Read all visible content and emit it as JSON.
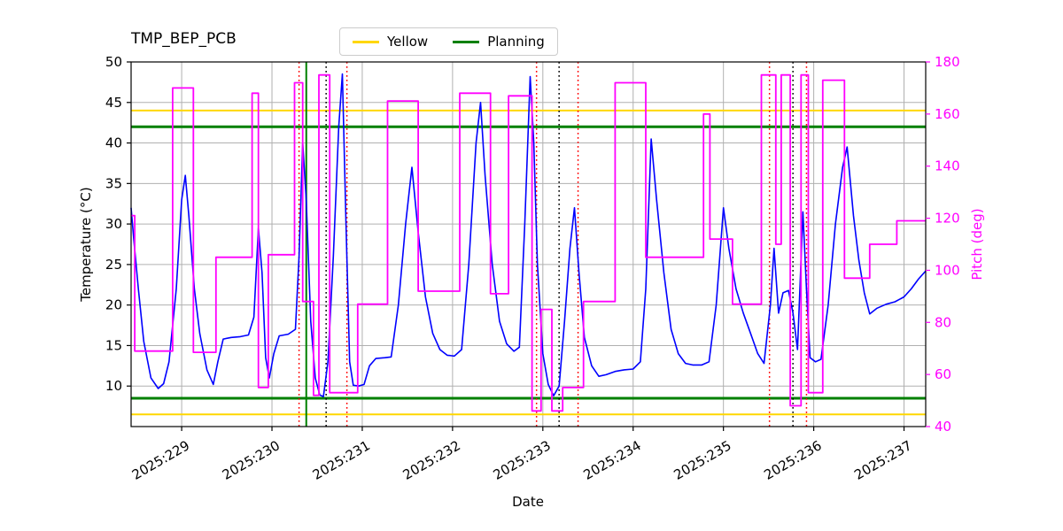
{
  "title": "TMP_BEP_PCB",
  "legend": {
    "items": [
      {
        "label": "Yellow",
        "color": "#ffd700"
      },
      {
        "label": "Planning",
        "color": "#008000"
      }
    ]
  },
  "axes": {
    "x_label": "Date",
    "y_left_label": "Temperature (°C)",
    "y_right_label": "Pitch (deg)"
  },
  "chart_data": {
    "type": "line",
    "title": "TMP_BEP_PCB",
    "xlabel": "Date",
    "ylabel_left": "Temperature (°C)",
    "ylabel_right": "Pitch (deg)",
    "grid": {
      "show": true,
      "color": "#b0b0b0"
    },
    "xlim": [
      228.44,
      237.24
    ],
    "ylim_left": [
      5.0,
      50.0
    ],
    "ylim_right": [
      40,
      180
    ],
    "x_tick_values": [
      229,
      230,
      231,
      232,
      233,
      234,
      235,
      236,
      237
    ],
    "x_tick_labels": [
      "2025:229",
      "2025:230",
      "2025:231",
      "2025:232",
      "2025:233",
      "2025:234",
      "2025:235",
      "2025:236",
      "2025:237"
    ],
    "y_ticks_left": [
      10,
      15,
      20,
      25,
      30,
      35,
      40,
      45,
      50
    ],
    "y_ticks_right": [
      40,
      60,
      80,
      100,
      120,
      140,
      160,
      180
    ],
    "hlines": [
      {
        "name": "yellow-upper-limit",
        "y": 44.0,
        "axis": "left",
        "color": "#ffd700",
        "width": 2
      },
      {
        "name": "yellow-lower-limit",
        "y": 6.5,
        "axis": "left",
        "color": "#ffd700",
        "width": 2
      },
      {
        "name": "planning-upper-limit",
        "y": 42.0,
        "axis": "left",
        "color": "#008000",
        "width": 3
      },
      {
        "name": "planning-lower-limit",
        "y": 8.5,
        "axis": "left",
        "color": "#008000",
        "width": 3
      }
    ],
    "vlines": [
      {
        "x": 230.3,
        "color": "#ff0000",
        "style": "dotted"
      },
      {
        "x": 230.38,
        "color": "#008000",
        "style": "solid"
      },
      {
        "x": 230.6,
        "color": "#000000",
        "style": "dotted"
      },
      {
        "x": 230.83,
        "color": "#ff0000",
        "style": "dotted"
      },
      {
        "x": 232.93,
        "color": "#ff0000",
        "style": "dotted"
      },
      {
        "x": 233.18,
        "color": "#000000",
        "style": "dotted"
      },
      {
        "x": 233.39,
        "color": "#ff0000",
        "style": "dotted"
      },
      {
        "x": 235.51,
        "color": "#ff0000",
        "style": "dotted"
      },
      {
        "x": 235.77,
        "color": "#000000",
        "style": "dotted"
      },
      {
        "x": 235.92,
        "color": "#ff0000",
        "style": "dotted"
      }
    ],
    "series": [
      {
        "name": "temperature",
        "color": "#0000ff",
        "axis": "left",
        "style": "line",
        "linewidth": 1.6,
        "points": [
          [
            228.44,
            32
          ],
          [
            228.47,
            28
          ],
          [
            228.52,
            22
          ],
          [
            228.58,
            15.5
          ],
          [
            228.66,
            11
          ],
          [
            228.74,
            9.7
          ],
          [
            228.8,
            10.3
          ],
          [
            228.86,
            13
          ],
          [
            228.94,
            22
          ],
          [
            229.0,
            33
          ],
          [
            229.04,
            36
          ],
          [
            229.08,
            31
          ],
          [
            229.14,
            22
          ],
          [
            229.2,
            16.5
          ],
          [
            229.28,
            12
          ],
          [
            229.35,
            10.2
          ],
          [
            229.4,
            13
          ],
          [
            229.46,
            15.8
          ],
          [
            229.55,
            16.0
          ],
          [
            229.65,
            16.1
          ],
          [
            229.74,
            16.3
          ],
          [
            229.8,
            18.5
          ],
          [
            229.85,
            29.5
          ],
          [
            229.89,
            24
          ],
          [
            229.93,
            13.5
          ],
          [
            229.97,
            11
          ],
          [
            230.02,
            14
          ],
          [
            230.08,
            16.2
          ],
          [
            230.18,
            16.4
          ],
          [
            230.26,
            17
          ],
          [
            230.3,
            26
          ],
          [
            230.34,
            40
          ],
          [
            230.38,
            33
          ],
          [
            230.43,
            18
          ],
          [
            230.48,
            11
          ],
          [
            230.53,
            8.9
          ],
          [
            230.57,
            8.7
          ],
          [
            230.62,
            13
          ],
          [
            230.68,
            26
          ],
          [
            230.74,
            42
          ],
          [
            230.78,
            48.5
          ],
          [
            230.82,
            30
          ],
          [
            230.86,
            13
          ],
          [
            230.9,
            10.1
          ],
          [
            230.96,
            10.0
          ],
          [
            231.02,
            10.2
          ],
          [
            231.08,
            12.5
          ],
          [
            231.15,
            13.4
          ],
          [
            231.25,
            13.5
          ],
          [
            231.32,
            13.6
          ],
          [
            231.4,
            20
          ],
          [
            231.48,
            30
          ],
          [
            231.55,
            37
          ],
          [
            231.62,
            29
          ],
          [
            231.7,
            21
          ],
          [
            231.78,
            16.5
          ],
          [
            231.86,
            14.5
          ],
          [
            231.94,
            13.8
          ],
          [
            232.02,
            13.7
          ],
          [
            232.1,
            14.5
          ],
          [
            232.18,
            25
          ],
          [
            232.26,
            40
          ],
          [
            232.31,
            45
          ],
          [
            232.36,
            36
          ],
          [
            232.44,
            25
          ],
          [
            232.52,
            18
          ],
          [
            232.6,
            15.2
          ],
          [
            232.68,
            14.3
          ],
          [
            232.74,
            14.8
          ],
          [
            232.8,
            30
          ],
          [
            232.86,
            48.2
          ],
          [
            232.9,
            40
          ],
          [
            232.94,
            25
          ],
          [
            233.0,
            14
          ],
          [
            233.06,
            10.2
          ],
          [
            233.12,
            8.8
          ],
          [
            233.18,
            10
          ],
          [
            233.24,
            18
          ],
          [
            233.3,
            27
          ],
          [
            233.35,
            32
          ],
          [
            233.4,
            24
          ],
          [
            233.46,
            16
          ],
          [
            233.54,
            12.5
          ],
          [
            233.62,
            11.2
          ],
          [
            233.7,
            11.4
          ],
          [
            233.8,
            11.8
          ],
          [
            233.9,
            12.0
          ],
          [
            234.0,
            12.1
          ],
          [
            234.08,
            13
          ],
          [
            234.14,
            22
          ],
          [
            234.2,
            40.5
          ],
          [
            234.26,
            33
          ],
          [
            234.34,
            24
          ],
          [
            234.42,
            17
          ],
          [
            234.5,
            14
          ],
          [
            234.58,
            12.8
          ],
          [
            234.66,
            12.6
          ],
          [
            234.76,
            12.6
          ],
          [
            234.84,
            13
          ],
          [
            234.92,
            20
          ],
          [
            235.0,
            32
          ],
          [
            235.06,
            27
          ],
          [
            235.14,
            22
          ],
          [
            235.22,
            19
          ],
          [
            235.3,
            16.5
          ],
          [
            235.38,
            14
          ],
          [
            235.45,
            12.8
          ],
          [
            235.52,
            20
          ],
          [
            235.56,
            27
          ],
          [
            235.61,
            19
          ],
          [
            235.66,
            21.5
          ],
          [
            235.72,
            21.8
          ],
          [
            235.77,
            19
          ],
          [
            235.82,
            14.5
          ],
          [
            235.88,
            31.5
          ],
          [
            235.92,
            22
          ],
          [
            235.96,
            13.5
          ],
          [
            236.02,
            13.0
          ],
          [
            236.08,
            13.3
          ],
          [
            236.16,
            20
          ],
          [
            236.24,
            30
          ],
          [
            236.32,
            37
          ],
          [
            236.37,
            39.5
          ],
          [
            236.44,
            31
          ],
          [
            236.5,
            25.5
          ],
          [
            236.56,
            21.5
          ],
          [
            236.62,
            18.9
          ],
          [
            236.7,
            19.6
          ],
          [
            236.8,
            20.1
          ],
          [
            236.9,
            20.4
          ],
          [
            237.0,
            21
          ],
          [
            237.08,
            22
          ],
          [
            237.16,
            23.2
          ],
          [
            237.24,
            24.2
          ]
        ]
      },
      {
        "name": "pitch",
        "color": "#ff00ff",
        "axis": "right",
        "style": "step",
        "linewidth": 1.8,
        "points": [
          [
            228.44,
            121
          ],
          [
            228.48,
            69
          ],
          [
            228.9,
            170
          ],
          [
            229.13,
            68.5
          ],
          [
            229.38,
            105
          ],
          [
            229.78,
            168
          ],
          [
            229.85,
            55
          ],
          [
            229.96,
            106
          ],
          [
            230.25,
            172
          ],
          [
            230.34,
            88
          ],
          [
            230.46,
            52
          ],
          [
            230.52,
            175
          ],
          [
            230.64,
            53
          ],
          [
            230.95,
            87
          ],
          [
            231.28,
            165
          ],
          [
            231.62,
            92
          ],
          [
            232.08,
            168
          ],
          [
            232.42,
            91
          ],
          [
            232.62,
            167
          ],
          [
            232.88,
            46
          ],
          [
            232.98,
            85
          ],
          [
            233.1,
            46
          ],
          [
            233.22,
            55
          ],
          [
            233.45,
            88
          ],
          [
            233.8,
            172
          ],
          [
            234.14,
            105
          ],
          [
            234.78,
            160
          ],
          [
            234.85,
            112
          ],
          [
            235.1,
            87
          ],
          [
            235.42,
            175
          ],
          [
            235.58,
            110
          ],
          [
            235.64,
            175
          ],
          [
            235.74,
            48
          ],
          [
            235.86,
            175
          ],
          [
            235.94,
            53
          ],
          [
            236.1,
            173
          ],
          [
            236.34,
            97
          ],
          [
            236.62,
            110
          ],
          [
            236.92,
            119
          ],
          [
            237.24,
            119
          ]
        ]
      }
    ]
  }
}
